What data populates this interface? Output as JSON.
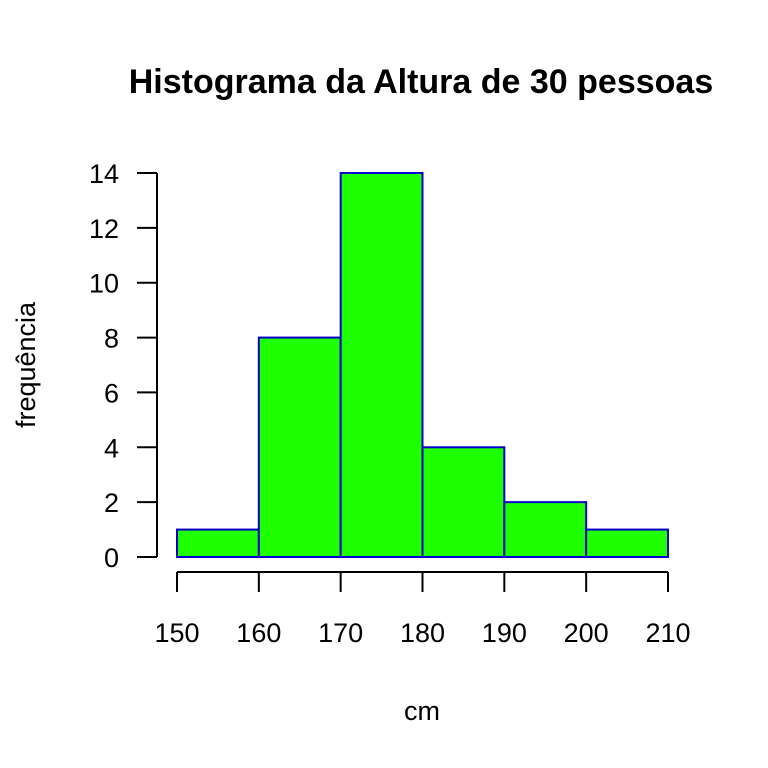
{
  "chart_data": {
    "type": "bar",
    "title": "Histograma da Altura de 30 pessoas",
    "xlabel": "cm",
    "ylabel": "frequência",
    "bins": [
      {
        "from": 150,
        "to": 160,
        "count": 1
      },
      {
        "from": 160,
        "to": 170,
        "count": 8
      },
      {
        "from": 170,
        "to": 180,
        "count": 14
      },
      {
        "from": 180,
        "to": 190,
        "count": 4
      },
      {
        "from": 190,
        "to": 200,
        "count": 2
      },
      {
        "from": 200,
        "to": 210,
        "count": 1
      }
    ],
    "x_ticks": [
      150,
      160,
      170,
      180,
      190,
      200,
      210
    ],
    "y_ticks": [
      0,
      2,
      4,
      6,
      8,
      10,
      12,
      14
    ],
    "xlim": [
      150,
      210
    ],
    "ylim": [
      0,
      14
    ],
    "grid": false,
    "bar_fill_color": "#1eff00",
    "bar_border_color": "#0000cc"
  }
}
